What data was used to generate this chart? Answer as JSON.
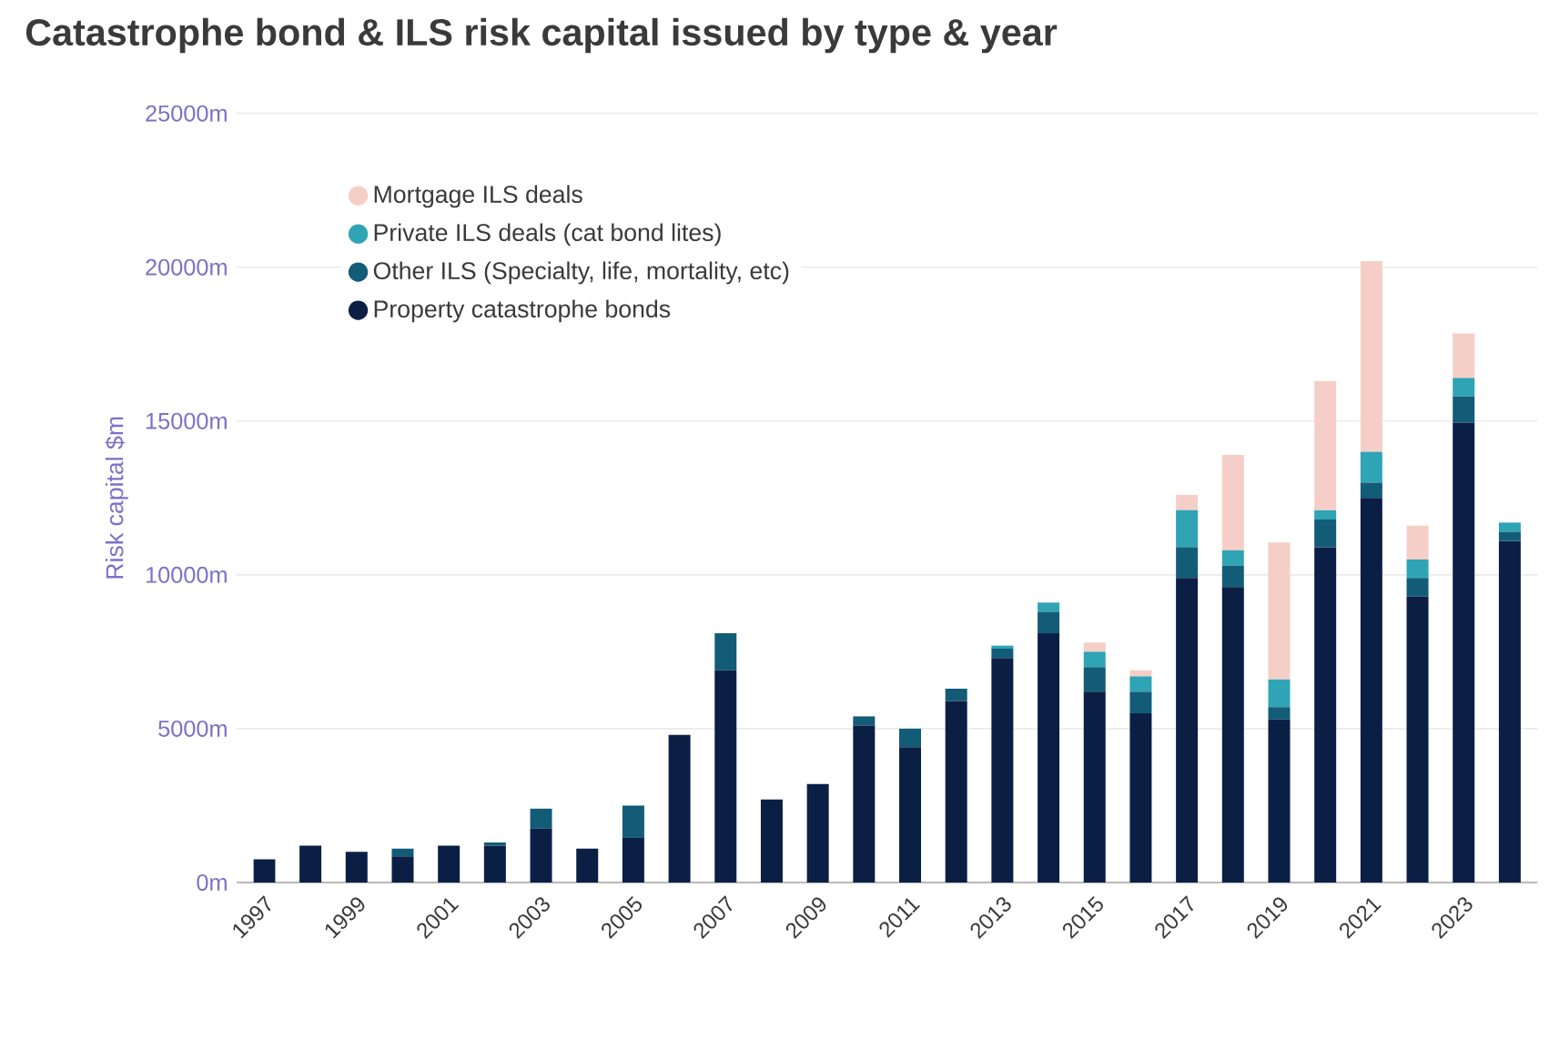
{
  "chart_data": {
    "type": "bar",
    "stacked": true,
    "title": "Catastrophe bond & ILS risk capital issued by type & year",
    "ylabel": "Risk capital $m",
    "categories": [
      "1997",
      null,
      "1999",
      null,
      "2001",
      null,
      "2003",
      null,
      "2005",
      null,
      "2007",
      null,
      "2009",
      null,
      "2011",
      null,
      "2013",
      null,
      "2015",
      null,
      "2017",
      null,
      "2019",
      null,
      "2021",
      null,
      "2023",
      null
    ],
    "series": [
      {
        "name": "Property catastrophe bonds",
        "color": "#0b1f45",
        "values": [
          750,
          1200,
          1000,
          850,
          1200,
          1200,
          1750,
          1100,
          1450,
          4800,
          6900,
          2700,
          3200,
          5100,
          4400,
          5900,
          7300,
          8100,
          6200,
          5500,
          9900,
          9600,
          5300,
          10900,
          12500,
          9300,
          14950,
          11100
        ]
      },
      {
        "name": "Other ILS (Specialty, life, mortality, etc)",
        "color": "#125c78",
        "values": [
          0,
          0,
          0,
          250,
          0,
          100,
          650,
          0,
          1050,
          0,
          1200,
          0,
          0,
          300,
          600,
          400,
          300,
          700,
          800,
          700,
          1000,
          700,
          400,
          900,
          500,
          600,
          850,
          300
        ]
      },
      {
        "name": "Private ILS deals (cat bond lites)",
        "color": "#2fa4b5",
        "values": [
          0,
          0,
          0,
          0,
          0,
          0,
          0,
          0,
          0,
          0,
          0,
          0,
          0,
          0,
          0,
          0,
          100,
          300,
          500,
          500,
          1200,
          500,
          900,
          300,
          1000,
          600,
          600,
          300
        ]
      },
      {
        "name": "Mortgage ILS deals",
        "color": "#f5cfc7",
        "values": [
          0,
          0,
          0,
          0,
          0,
          0,
          0,
          0,
          0,
          0,
          0,
          0,
          0,
          0,
          0,
          0,
          0,
          0,
          300,
          200,
          500,
          3100,
          4450,
          4200,
          6200,
          1100,
          1450,
          0
        ]
      }
    ],
    "ylim": [
      0,
      25000
    ],
    "yticks": [
      {
        "value": 0,
        "label": "0m"
      },
      {
        "value": 5000,
        "label": "5000m"
      },
      {
        "value": 10000,
        "label": "10000m"
      },
      {
        "value": 15000,
        "label": "15000m"
      },
      {
        "value": 20000,
        "label": "20000m"
      },
      {
        "value": 25000,
        "label": "25000m"
      }
    ],
    "grid": "y",
    "legend": "top left"
  }
}
